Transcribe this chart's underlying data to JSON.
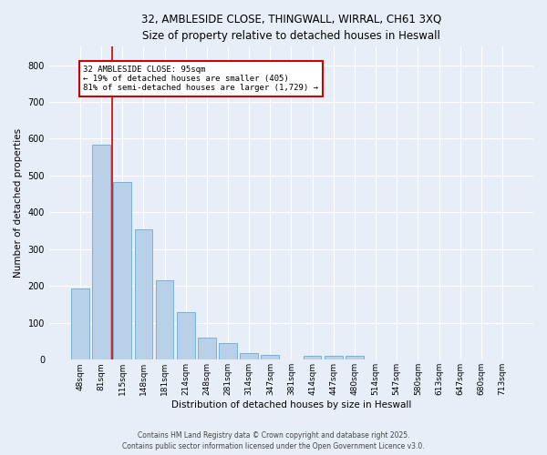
{
  "title_line1": "32, AMBLESIDE CLOSE, THINGWALL, WIRRAL, CH61 3XQ",
  "title_line2": "Size of property relative to detached houses in Heswall",
  "xlabel": "Distribution of detached houses by size in Heswall",
  "ylabel": "Number of detached properties",
  "categories": [
    "48sqm",
    "81sqm",
    "115sqm",
    "148sqm",
    "181sqm",
    "214sqm",
    "248sqm",
    "281sqm",
    "314sqm",
    "347sqm",
    "381sqm",
    "414sqm",
    "447sqm",
    "480sqm",
    "514sqm",
    "547sqm",
    "580sqm",
    "613sqm",
    "647sqm",
    "680sqm",
    "713sqm"
  ],
  "values": [
    193,
    585,
    483,
    355,
    215,
    130,
    60,
    45,
    18,
    13,
    0,
    10,
    10,
    10,
    0,
    0,
    0,
    0,
    0,
    0,
    0
  ],
  "bar_color": "#b8d0e8",
  "bar_edge_color": "#6aaad4",
  "background_color": "#e8eef8",
  "grid_color": "#ffffff",
  "marker_line_color": "#cc0000",
  "marker_line_index": 1,
  "annotation_text": "32 AMBLESIDE CLOSE: 95sqm\n← 19% of detached houses are smaller (405)\n81% of semi-detached houses are larger (1,729) →",
  "annotation_box_color": "#cc0000",
  "ylim": [
    0,
    850
  ],
  "yticks": [
    0,
    100,
    200,
    300,
    400,
    500,
    600,
    700,
    800
  ],
  "footer_line1": "Contains HM Land Registry data © Crown copyright and database right 2025.",
  "footer_line2": "Contains public sector information licensed under the Open Government Licence v3.0."
}
